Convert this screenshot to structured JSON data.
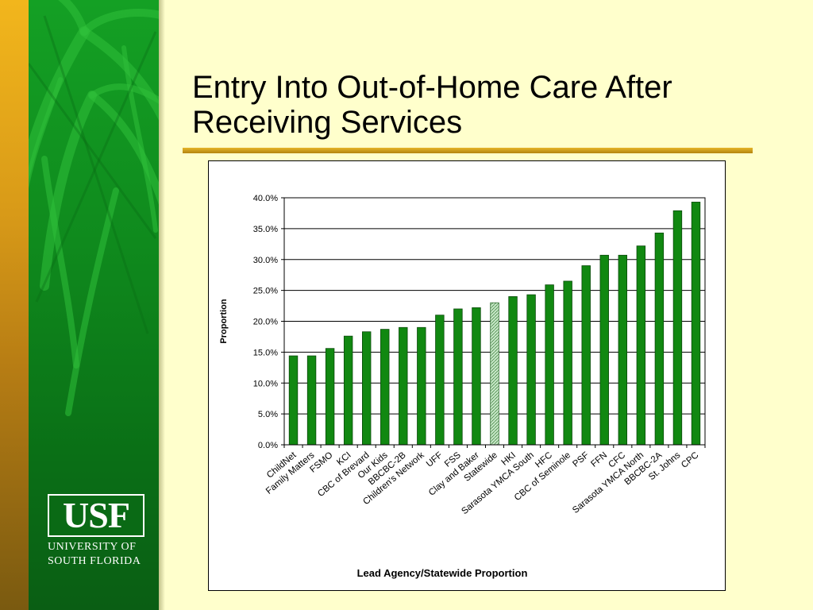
{
  "slide": {
    "title_line1": "Entry Into Out-of-Home Care After",
    "title_line2": "Receiving Services"
  },
  "logo": {
    "letters": "USF",
    "line1": "UNIVERSITY OF",
    "line2": "SOUTH FLORIDA"
  },
  "colors": {
    "background": "#ffffcc",
    "green_panel": "#0f8a1d",
    "gold_accent": "#d4a020",
    "bar_green": "#118811",
    "bar_highlight": "#c8e8c8"
  },
  "chart_data": {
    "type": "bar",
    "title": "",
    "xlabel": "Lead Agency/Statewide Proportion",
    "ylabel": "Proportion",
    "ylim": [
      0,
      40
    ],
    "yticks": [
      "0.0%",
      "5.0%",
      "10.0%",
      "15.0%",
      "20.0%",
      "25.0%",
      "30.0%",
      "35.0%",
      "40.0%"
    ],
    "ytick_values": [
      0,
      5,
      10,
      15,
      20,
      25,
      30,
      35,
      40
    ],
    "grid": "horizontal",
    "legend": "none",
    "highlight_category": "Statewide",
    "categories": [
      "ChildNet",
      "Family Matters",
      "FSMO",
      "KCI",
      "CBC of Brevard",
      "Our Kids",
      "BBCBC-2B",
      "Children's Network",
      "UFF",
      "FSS",
      "Clay and Baker",
      "Statewide",
      "HKI",
      "Sarasota YMCA South",
      "HFC",
      "CBC of Seminole",
      "PSF",
      "FFN",
      "CFC",
      "Sarasota YMCA North",
      "BBCBC-2A",
      "St. Johns",
      "CPC"
    ],
    "values": [
      14.4,
      14.4,
      15.6,
      17.6,
      18.3,
      18.7,
      19.0,
      19.0,
      21.0,
      22.0,
      22.2,
      23.0,
      24.0,
      24.3,
      25.9,
      26.5,
      29.0,
      30.7,
      30.7,
      32.2,
      34.3,
      37.9,
      39.3
    ]
  }
}
